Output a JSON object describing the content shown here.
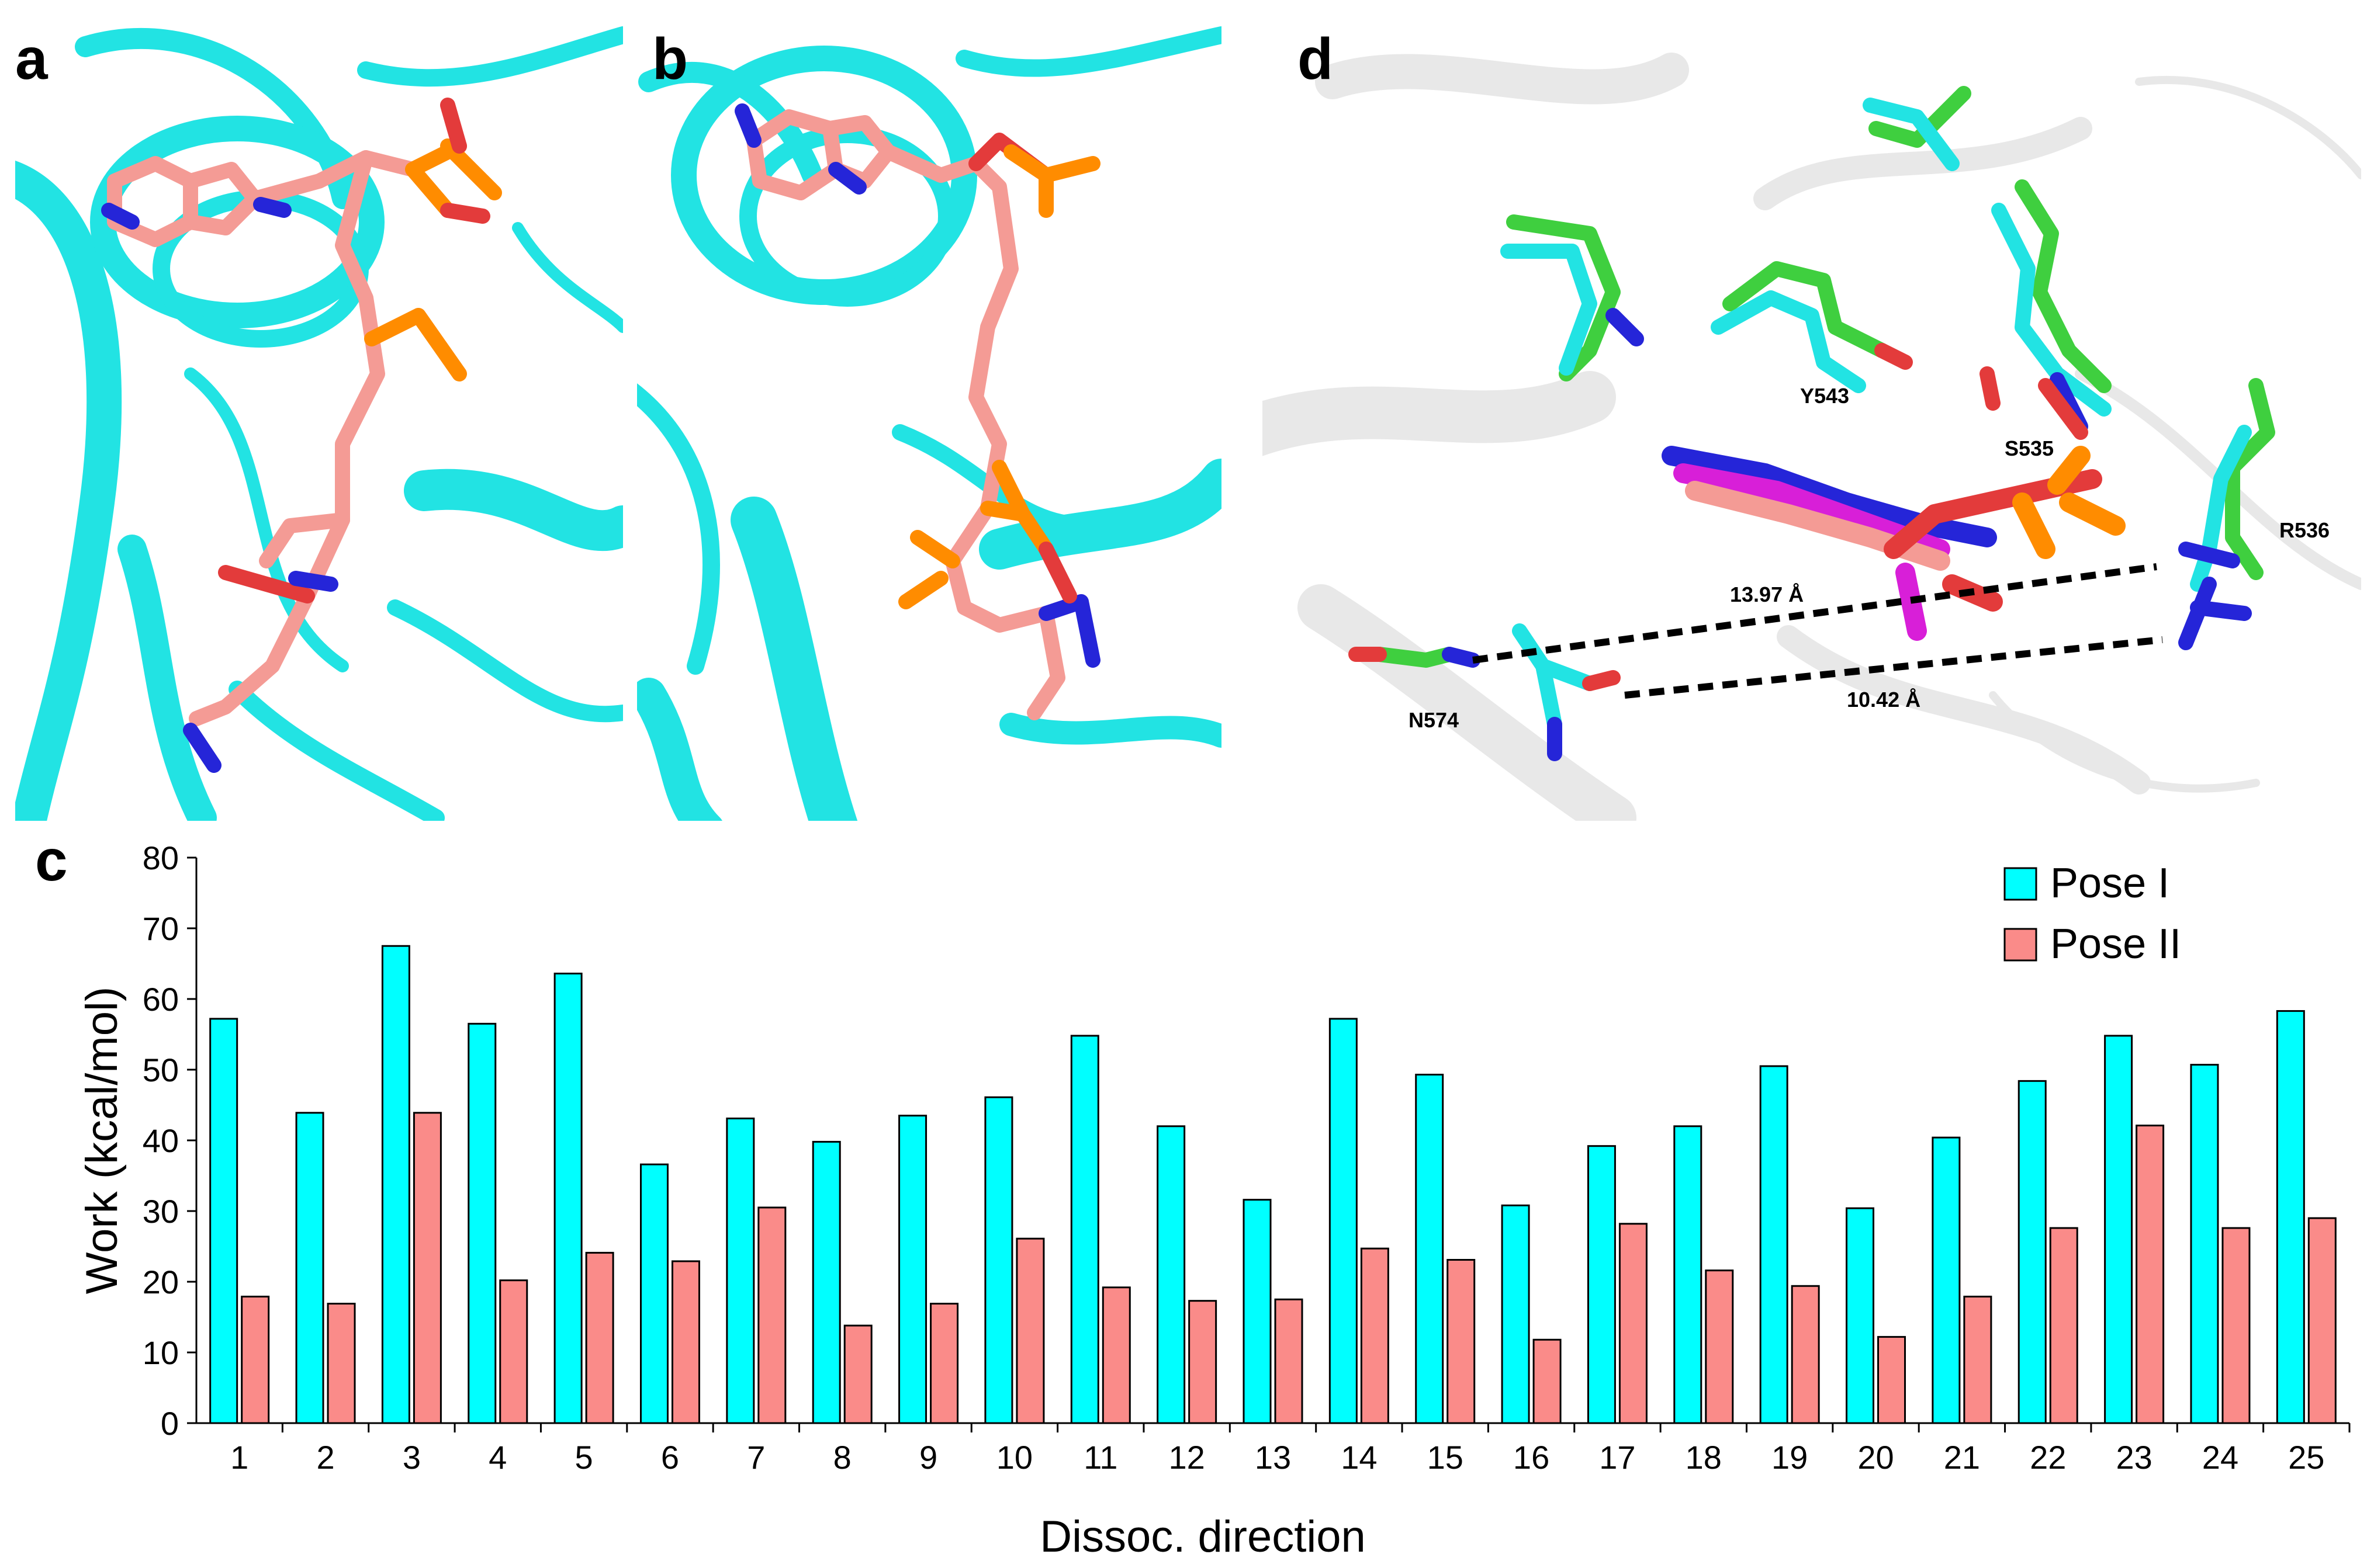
{
  "panels": {
    "a": {
      "letter": "a"
    },
    "b": {
      "letter": "b"
    },
    "c": {
      "letter": "c"
    },
    "d": {
      "letter": "d",
      "residues": [
        "Y543",
        "S535",
        "R536",
        "N574"
      ],
      "distances": [
        "13.97 Å",
        "10.42 Å"
      ]
    }
  },
  "colors": {
    "cartoon": "#22e3e3",
    "ligand": "#f49b95",
    "nitrogen": "#2525d8",
    "oxygen": "#e33b3b",
    "phosphorus": "#ff8c00",
    "residue_green": "#3fcf3f",
    "ligand_magenta": "#d81fd8",
    "gray_cartoon": "#e8e8e8",
    "pose1": "#00ffff",
    "pose2": "#fa8b89"
  },
  "chart_data": {
    "type": "bar",
    "xlabel": "Dissoc. direction",
    "ylabel": "Work (kcal/mol)",
    "ylim": [
      0,
      80
    ],
    "yticks": [
      0,
      10,
      20,
      30,
      40,
      50,
      60,
      70,
      80
    ],
    "categories": [
      "1",
      "2",
      "3",
      "4",
      "5",
      "6",
      "7",
      "8",
      "9",
      "10",
      "11",
      "12",
      "13",
      "14",
      "15",
      "16",
      "17",
      "18",
      "19",
      "20",
      "21",
      "22",
      "23",
      "24",
      "25"
    ],
    "legend_position": "top-right",
    "series": [
      {
        "name": "Pose I",
        "color": "#00ffff",
        "values": [
          57.2,
          43.9,
          67.5,
          56.5,
          63.6,
          36.6,
          43.1,
          39.8,
          43.5,
          46.1,
          54.8,
          42.0,
          31.6,
          57.2,
          49.3,
          30.8,
          39.2,
          42.0,
          50.5,
          30.4,
          40.4,
          48.4,
          54.8,
          50.7,
          58.3
        ]
      },
      {
        "name": "Pose II",
        "color": "#fa8b89",
        "values": [
          17.9,
          16.9,
          43.9,
          20.2,
          24.1,
          22.9,
          30.5,
          13.8,
          16.9,
          26.1,
          19.2,
          17.3,
          17.5,
          24.7,
          23.1,
          11.8,
          28.2,
          21.6,
          19.4,
          12.2,
          17.9,
          27.6,
          42.1,
          27.6,
          29.0
        ]
      }
    ]
  }
}
